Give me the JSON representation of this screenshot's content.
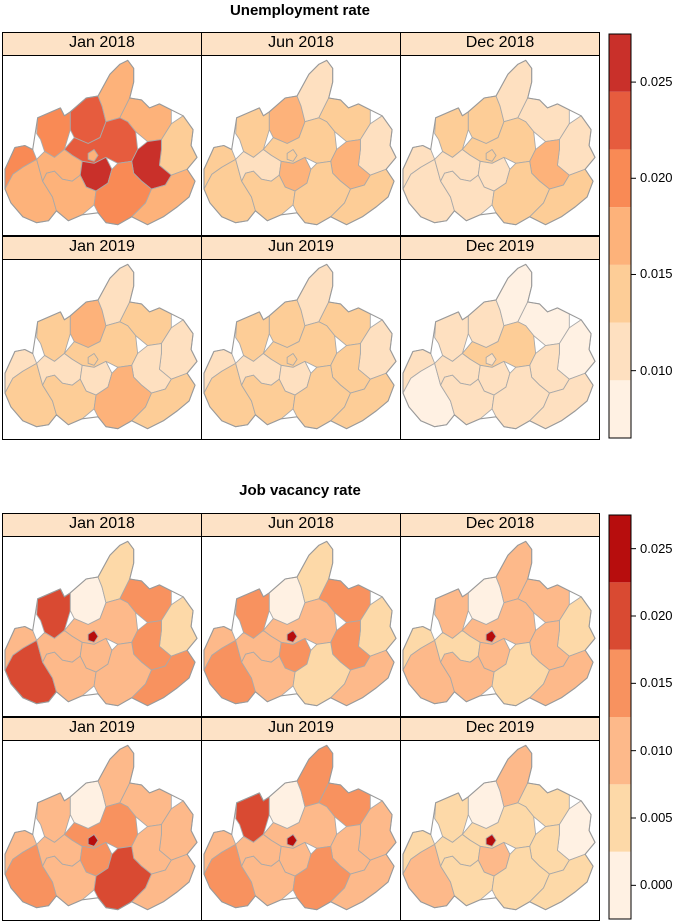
{
  "figure": {
    "titles": [
      "Unemployment rate",
      "Job vacancy rate"
    ]
  },
  "chart_data": [
    {
      "type": "heatmap",
      "subtype": "choropleth-map",
      "title": "Unemployment rate",
      "panels": [
        "Jan 2018",
        "Jun 2018",
        "Dec 2018",
        "Jan 2019",
        "Jun 2019",
        "Dec 2019"
      ],
      "legend": {
        "position": "right",
        "breaks": [
          0.0065,
          0.0095,
          0.0125,
          0.0155,
          0.0185,
          0.0215,
          0.0245,
          0.0275
        ],
        "colors": [
          "#fff1e3",
          "#fee0c0",
          "#fdcd97",
          "#fdb27a",
          "#f98a55",
          "#e65c3e",
          "#c9302a",
          "#900000"
        ],
        "ticks": [
          0.01,
          0.015,
          0.02,
          0.025
        ],
        "tick_labels": [
          "0.010",
          "0.015",
          "0.020",
          "0.025"
        ]
      },
      "region_values": [
        [
          0.02,
          0.019,
          0.024,
          0.016,
          0.018,
          0.014,
          0.023,
          0.018,
          0.016,
          0.026,
          0.027,
          0.017,
          0.021,
          0.018,
          0.017
        ],
        [
          0.013,
          0.015,
          0.017,
          0.012,
          0.013,
          0.012,
          0.015,
          0.014,
          0.012,
          0.016,
          0.017,
          0.013,
          0.015,
          0.014,
          0.013
        ],
        [
          0.012,
          0.014,
          0.014,
          0.01,
          0.012,
          0.011,
          0.014,
          0.012,
          0.012,
          0.012,
          0.016,
          0.012,
          0.014,
          0.013,
          0.014
        ],
        [
          0.012,
          0.014,
          0.016,
          0.01,
          0.013,
          0.012,
          0.013,
          0.014,
          0.012,
          0.012,
          0.012,
          0.013,
          0.017,
          0.014,
          0.013
        ],
        [
          0.012,
          0.015,
          0.014,
          0.01,
          0.013,
          0.012,
          0.013,
          0.013,
          0.012,
          0.012,
          0.013,
          0.013,
          0.015,
          0.014,
          0.013
        ],
        [
          0.01,
          0.011,
          0.01,
          0.008,
          0.009,
          0.009,
          0.013,
          0.009,
          0.01,
          0.01,
          0.012,
          0.01,
          0.011,
          0.01,
          0.011
        ]
      ]
    },
    {
      "type": "heatmap",
      "subtype": "choropleth-map",
      "title": "Job vacancy rate",
      "panels": [
        "Jan 2018",
        "Jun 2018",
        "Dec 2018",
        "Jan 2019",
        "Jun 2019",
        "Dec 2019"
      ],
      "legend": {
        "position": "right",
        "breaks": [
          -0.0025,
          0.0025,
          0.0075,
          0.0125,
          0.0175,
          0.0225,
          0.0275
        ],
        "colors": [
          "#fff1e3",
          "#fdd9a8",
          "#fdb98a",
          "#f8925f",
          "#d94a32",
          "#b70d0d"
        ],
        "ticks": [
          0.0,
          0.005,
          0.01,
          0.015,
          0.02,
          0.025
        ],
        "tick_labels": [
          "0.000",
          "0.005",
          "0.010",
          "0.015",
          "0.020",
          "0.025"
        ]
      },
      "region_values": [
        [
          0.008,
          0.018,
          0.001,
          0.007,
          0.013,
          0.006,
          0.009,
          0.018,
          0.01,
          0.011,
          0.013,
          0.008,
          0.008,
          0.017,
          0.025
        ],
        [
          0.008,
          0.016,
          0.001,
          0.007,
          0.013,
          0.004,
          0.008,
          0.013,
          0.011,
          0.015,
          0.013,
          0.008,
          0.007,
          0.011,
          0.025
        ],
        [
          0.007,
          0.009,
          0.002,
          0.008,
          0.008,
          0.003,
          0.008,
          0.009,
          0.006,
          0.008,
          0.009,
          0.008,
          0.007,
          0.008,
          0.026
        ],
        [
          0.009,
          0.008,
          0.001,
          0.009,
          0.008,
          0.009,
          0.013,
          0.013,
          0.009,
          0.013,
          0.009,
          0.009,
          0.018,
          0.008,
          0.026
        ],
        [
          0.009,
          0.019,
          0.001,
          0.013,
          0.013,
          0.008,
          0.012,
          0.013,
          0.01,
          0.008,
          0.009,
          0.009,
          0.017,
          0.008,
          0.026
        ],
        [
          0.006,
          0.006,
          0.001,
          0.008,
          0.007,
          0.002,
          0.007,
          0.008,
          0.006,
          0.009,
          0.007,
          0.006,
          0.006,
          0.007,
          0.025
        ]
      ]
    }
  ]
}
